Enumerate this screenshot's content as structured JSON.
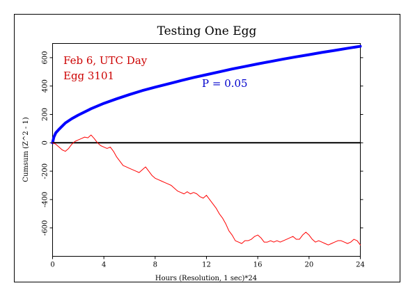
{
  "chart_data": {
    "type": "line",
    "title": "Testing One Egg",
    "xlabel": "Hours (Resolution, 1 sec)*24",
    "ylabel": "Cumsum (Z^2 - 1)",
    "xlim": [
      0,
      24
    ],
    "ylim": [
      -800,
      700
    ],
    "x_ticks": [
      0,
      4,
      8,
      12,
      16,
      20,
      24
    ],
    "y_ticks": [
      -600,
      -400,
      -200,
      0,
      200,
      400,
      600
    ],
    "grid": false,
    "annotations": {
      "date_label": "Feb 6, UTC Day",
      "egg_label": "Egg 3101",
      "p_label": "P = 0.05"
    },
    "colors": {
      "envelope": "#0000ff",
      "cumsum": "#ff0000",
      "zero_line": "#000000",
      "annotation_red": "#cc0000",
      "annotation_blue": "#0000cc"
    },
    "series": [
      {
        "x": [
          0,
          0.25,
          0.5,
          0.75,
          1,
          1.25,
          1.5,
          1.75,
          2,
          2.25,
          2.5,
          2.75,
          3,
          3.25,
          3.5,
          3.75,
          4,
          4.25,
          4.5,
          4.75,
          5,
          5.25,
          5.5,
          5.75,
          6,
          6.25,
          6.5,
          6.75,
          7,
          7.25,
          7.5,
          7.75,
          8,
          8.25,
          8.5,
          8.75,
          9,
          9.25,
          9.5,
          9.75,
          10,
          10.25,
          10.5,
          10.75,
          11,
          11.25,
          11.5,
          11.75,
          12,
          12.25,
          12.5,
          12.75,
          13,
          13.25,
          13.5,
          13.75,
          14,
          14.25,
          14.5,
          14.75,
          15,
          15.25,
          15.5,
          15.75,
          16,
          16.25,
          16.5,
          16.75,
          17,
          17.25,
          17.5,
          17.75,
          18,
          18.25,
          18.5,
          18.75,
          19,
          19.25,
          19.5,
          19.75,
          20,
          20.25,
          20.5,
          20.75,
          21,
          21.25,
          21.5,
          21.75,
          22,
          22.25,
          22.5,
          22.75,
          23,
          23.25,
          23.5,
          23.75,
          24
        ],
        "y": [
          0,
          -10,
          -30,
          -50,
          -60,
          -40,
          -10,
          10,
          20,
          30,
          40,
          35,
          55,
          30,
          0,
          -20,
          -30,
          -40,
          -30,
          -60,
          -100,
          -130,
          -160,
          -170,
          -180,
          -190,
          -200,
          -210,
          -190,
          -170,
          -200,
          -230,
          -250,
          -260,
          -270,
          -280,
          -290,
          -300,
          -320,
          -340,
          -350,
          -360,
          -345,
          -360,
          -350,
          -360,
          -380,
          -390,
          -370,
          -400,
          -430,
          -460,
          -500,
          -530,
          -570,
          -620,
          -650,
          -690,
          -700,
          -710,
          -690,
          -690,
          -680,
          -660,
          -650,
          -670,
          -700,
          -700,
          -690,
          -700,
          -690,
          -700,
          -690,
          -680,
          -670,
          -660,
          -680,
          -680,
          -650,
          -630,
          -650,
          -680,
          -700,
          -690,
          -700,
          -710,
          -720,
          -710,
          -700,
          -690,
          -690,
          -700,
          -710,
          -700,
          -680,
          -690,
          -720
        ]
      },
      {
        "x": [
          0,
          0.1,
          0.25,
          0.5,
          1,
          1.5,
          2,
          3,
          4,
          5,
          6,
          7,
          8,
          9,
          10,
          11,
          12,
          13,
          14,
          15,
          16,
          17,
          18,
          19,
          20,
          21,
          22,
          23,
          24
        ],
        "y": [
          0,
          40,
          70,
          95,
          140,
          170,
          195,
          240,
          278,
          310,
          340,
          368,
          392,
          415,
          438,
          460,
          480,
          500,
          520,
          538,
          556,
          573,
          590,
          606,
          621,
          637,
          651,
          666,
          680
        ]
      },
      {
        "x": [
          0,
          24
        ],
        "y": [
          0,
          0
        ]
      }
    ]
  }
}
